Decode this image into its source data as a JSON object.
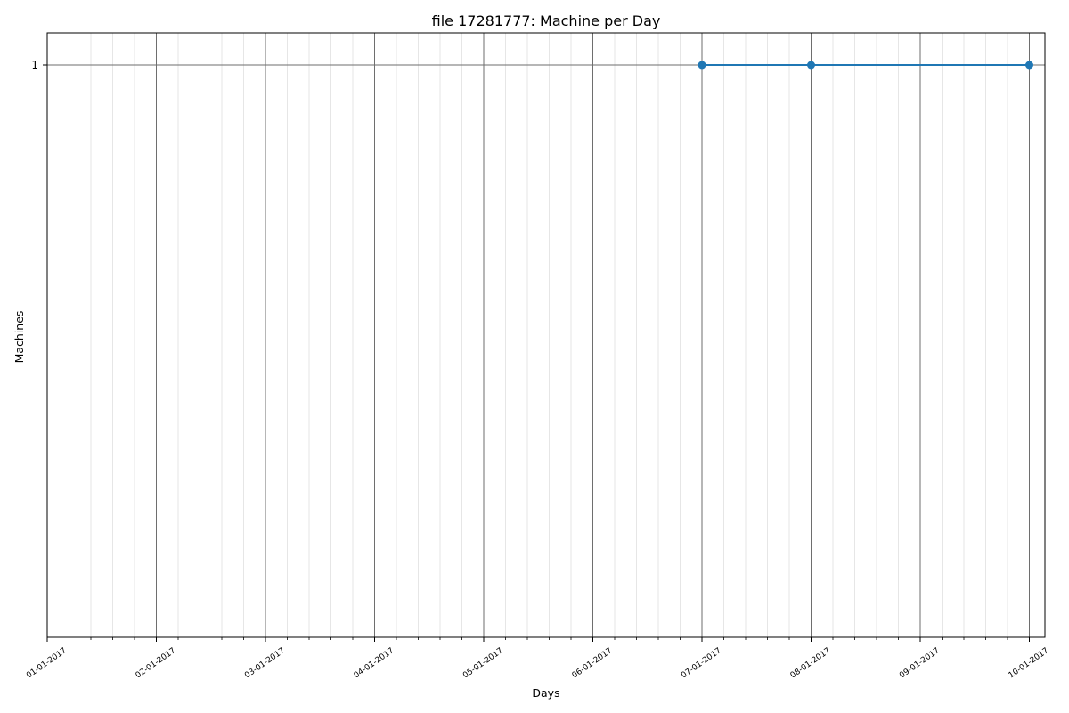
{
  "chart_data": {
    "type": "line",
    "title": "file 17281777: Machine per Day",
    "xlabel": "Days",
    "ylabel": "Machines",
    "x_tick_labels": [
      "01-01-2017",
      "02-01-2017",
      "03-01-2017",
      "04-01-2017",
      "05-01-2017",
      "06-01-2017",
      "07-01-2017",
      "08-01-2017",
      "09-01-2017",
      "10-01-2017"
    ],
    "y_tick_labels": [
      "1"
    ],
    "grid": true,
    "minor_grid": true,
    "series": [
      {
        "color": "#1f77b4",
        "marker": "circle",
        "points": [
          {
            "x": "07-01-2017",
            "y": 1
          },
          {
            "x": "08-01-2017",
            "y": 1
          },
          {
            "x": "10-01-2017",
            "y": 1
          }
        ]
      }
    ]
  }
}
